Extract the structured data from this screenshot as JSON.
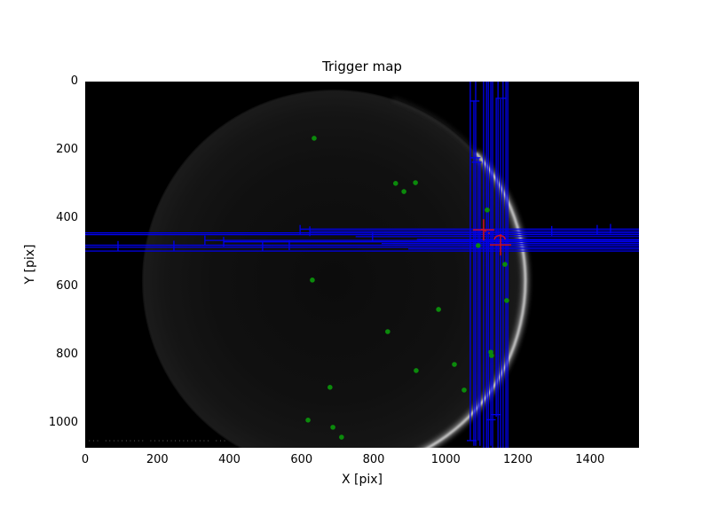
{
  "figure": {
    "title": "Trigger map",
    "x_axis_label": "X [pix]",
    "y_axis_label": "Y [pix]",
    "background_color": "#ffffff",
    "plot_background_color": "#000000",
    "watermark_text": "··· ·········· ··············· ···"
  },
  "axes": {
    "x_tick_values": [
      0,
      200,
      400,
      600,
      800,
      1000,
      1200,
      1400
    ],
    "y_tick_values": [
      0,
      200,
      400,
      600,
      800,
      1000
    ],
    "x_range": [
      0,
      1536
    ],
    "y_range": [
      0,
      1072
    ],
    "y_inverted": true,
    "grid": false,
    "legend": "none"
  },
  "colors": {
    "trigger_box": "#0000ee",
    "detection_dot": "#0b8a0b",
    "candidate_marker": "#dd1111",
    "moon_limb": "#e0e0e0"
  },
  "chart_data": {
    "type": "scatter",
    "title": "Trigger map",
    "xlabel": "X [pix]",
    "ylabel": "Y [pix]",
    "xlim": [
      0,
      1536
    ],
    "ylim": [
      1072,
      0
    ],
    "background": {
      "description": "grayscale lunar image: very dark disk with bright crescent limb on right side",
      "moon_center": [
        689,
        584
      ],
      "moon_radius_px": 216,
      "limb_bright_arc_deg": [
        -42,
        68
      ],
      "limb_faint_arc_deg": [
        -72,
        83
      ]
    },
    "series": [
      {
        "name": "detections",
        "type": "scatter",
        "marker": "circle",
        "color": "#0b8a0b",
        "points": [
          [
            635,
            166
          ],
          [
            861,
            298
          ],
          [
            884,
            322
          ],
          [
            916,
            296
          ],
          [
            1115,
            376
          ],
          [
            630,
            581
          ],
          [
            1090,
            480
          ],
          [
            1164,
            535
          ],
          [
            1169,
            641
          ],
          [
            980,
            667
          ],
          [
            839,
            732
          ],
          [
            1125,
            792
          ],
          [
            1127,
            802
          ],
          [
            1024,
            828
          ],
          [
            918,
            846
          ],
          [
            1051,
            903
          ],
          [
            679,
            895
          ],
          [
            618,
            991
          ],
          [
            687,
            1012
          ],
          [
            711,
            1041
          ]
        ]
      },
      {
        "name": "trigger-rows",
        "type": "hlines",
        "color": "#0000ee",
        "lines": [
          {
            "y": 443,
            "x1": 0,
            "x2": 1536
          },
          {
            "y": 448,
            "x1": 0,
            "x2": 1536
          },
          {
            "y": 465,
            "x1": 332,
            "x2": 1536
          },
          {
            "y": 479,
            "x1": 0,
            "x2": 1536
          },
          {
            "y": 485,
            "x1": 0,
            "x2": 1536
          },
          {
            "y": 496,
            "x1": 0,
            "x2": 1536
          },
          {
            "y": 432,
            "x1": 596,
            "x2": 1536
          },
          {
            "y": 438,
            "x1": 623,
            "x2": 1536
          },
          {
            "y": 454,
            "x1": 750,
            "x2": 1536
          },
          {
            "y": 462,
            "x1": 920,
            "x2": 1536
          },
          {
            "y": 469,
            "x1": 384,
            "x2": 1536
          },
          {
            "y": 474,
            "x1": 822,
            "x2": 1536
          },
          {
            "y": 490,
            "x1": 896,
            "x2": 1536
          }
        ],
        "caps": [
          [
            91,
            481
          ],
          [
            246,
            480
          ],
          [
            332,
            465
          ],
          [
            384,
            469
          ],
          [
            492,
            482
          ],
          [
            566,
            479
          ],
          [
            596,
            434
          ],
          [
            623,
            438
          ],
          [
            797,
            455
          ],
          [
            1294,
            437
          ],
          [
            1420,
            434
          ],
          [
            1457,
            431
          ]
        ]
      },
      {
        "name": "trigger-columns",
        "type": "vlines",
        "color": "#0000ee",
        "lines": [
          {
            "x": 1068,
            "y1": 0,
            "y2": 1051
          },
          {
            "x": 1078,
            "y1": 55,
            "y2": 1066
          },
          {
            "x": 1083,
            "y1": 0,
            "y2": 1066
          },
          {
            "x": 1090,
            "y1": 223,
            "y2": 1051
          },
          {
            "x": 1095,
            "y1": 236,
            "y2": 1066
          },
          {
            "x": 1105,
            "y1": 0,
            "y2": 1072
          },
          {
            "x": 1113,
            "y1": 0,
            "y2": 1072
          },
          {
            "x": 1118,
            "y1": 0,
            "y2": 1072
          },
          {
            "x": 1125,
            "y1": 0,
            "y2": 1066
          },
          {
            "x": 1130,
            "y1": 0,
            "y2": 1072
          },
          {
            "x": 1140,
            "y1": 47,
            "y2": 981
          },
          {
            "x": 1145,
            "y1": 0,
            "y2": 1072
          },
          {
            "x": 1152,
            "y1": 52,
            "y2": 1072
          },
          {
            "x": 1159,
            "y1": 0,
            "y2": 1072
          },
          {
            "x": 1167,
            "y1": 0,
            "y2": 1072
          },
          {
            "x": 1172,
            "y1": 0,
            "y2": 1072
          }
        ],
        "caps": [
          [
            1080,
            57
          ],
          [
            1155,
            49
          ],
          [
            1083,
            223
          ],
          [
            1086,
            236
          ],
          [
            1140,
            975
          ],
          [
            1072,
            1051
          ],
          [
            1125,
            990
          ]
        ]
      },
      {
        "name": "candidates",
        "type": "scatter",
        "marker": "plus",
        "color": "#dd1111",
        "points": [
          [
            1105,
            434
          ],
          [
            1152,
            478
          ]
        ],
        "annotation_arc_center": [
          1150,
          457
        ],
        "specks": [
          [
            1100,
            433
          ],
          [
            1110,
            438
          ],
          [
            1120,
            444
          ]
        ]
      }
    ]
  }
}
